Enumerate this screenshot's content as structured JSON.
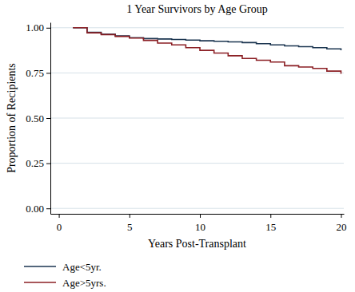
{
  "chart_data": {
    "type": "line",
    "title": "1 Year Survivors by Age Group",
    "x_label": "Years Post-Transplant",
    "y_label": "Proportion of Recipients",
    "x": [
      1,
      2,
      3,
      4,
      5,
      6,
      7,
      8,
      9,
      10,
      11,
      12,
      13,
      14,
      15,
      16,
      17,
      18,
      19,
      20
    ],
    "series": [
      {
        "name": "Age<5yr.",
        "color": "#1b3550",
        "values": [
          1.0,
          0.975,
          0.965,
          0.955,
          0.945,
          0.94,
          0.938,
          0.935,
          0.932,
          0.928,
          0.925,
          0.922,
          0.918,
          0.912,
          0.905,
          0.9,
          0.895,
          0.89,
          0.883,
          0.875
        ]
      },
      {
        "name": "Age>5yrs.",
        "color": "#8b1f24",
        "values": [
          1.0,
          0.972,
          0.962,
          0.952,
          0.943,
          0.93,
          0.915,
          0.905,
          0.89,
          0.875,
          0.86,
          0.845,
          0.83,
          0.82,
          0.81,
          0.79,
          0.783,
          0.775,
          0.76,
          0.745
        ]
      }
    ],
    "xlim": [
      -0.6,
      20.2
    ],
    "ylim": [
      -0.03,
      1.03
    ],
    "xticks": [
      0,
      5,
      10,
      15,
      20
    ],
    "yticks": [
      {
        "value": 0,
        "label": "0.00"
      },
      {
        "value": 0.25,
        "label": "0.25"
      },
      {
        "value": 0.5,
        "label": "0.50"
      },
      {
        "value": 0.75,
        "label": "0.75"
      },
      {
        "value": 1,
        "label": "1.00"
      }
    ],
    "grid": true,
    "legend": "bottom-left",
    "line_style": "step"
  }
}
